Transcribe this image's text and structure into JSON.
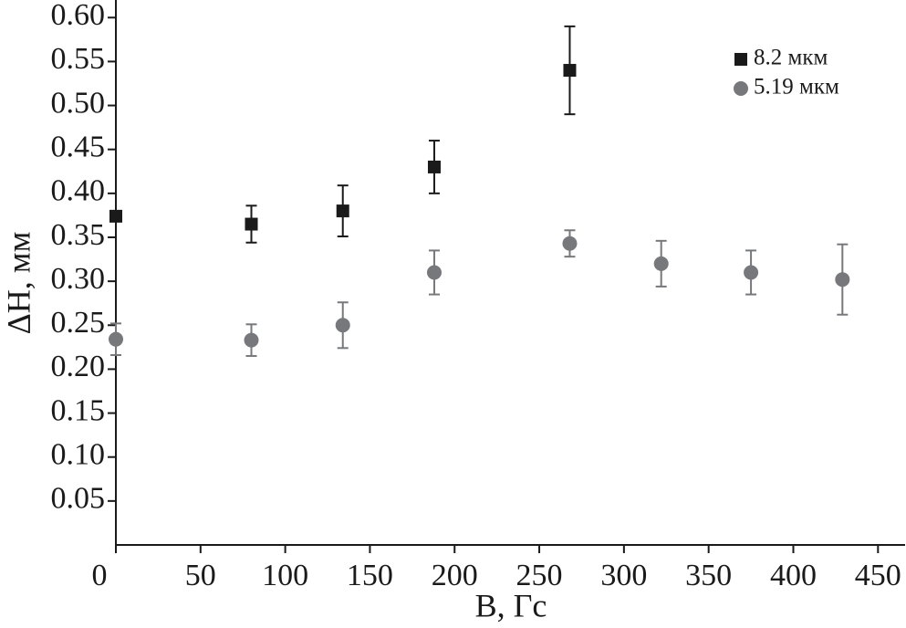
{
  "chart_data": {
    "type": "scatter",
    "x_label": "B, Гс",
    "y_label": "ΔH, мм",
    "xlim": [
      0,
      466
    ],
    "ylim": [
      0,
      0.62
    ],
    "xticks": [
      0,
      50,
      100,
      150,
      200,
      250,
      300,
      350,
      400,
      450
    ],
    "yticks": [
      0.05,
      {
        "value": 0.1,
        "label": "0.10"
      },
      0.15,
      {
        "value": 0.2,
        "label": "0.20"
      },
      0.25,
      {
        "value": 0.3,
        "label": "0.30"
      },
      0.35,
      {
        "value": 0.4,
        "label": "0.40"
      },
      0.45,
      {
        "value": 0.5,
        "label": "0.50"
      },
      0.55,
      {
        "value": 0.6,
        "label": "0.60"
      }
    ],
    "grid": false,
    "legend": "upper right",
    "series": [
      {
        "name": "8.2 мкм",
        "color": "#1a1a1a",
        "marker": "square",
        "x": [
          0,
          80,
          134,
          188,
          268
        ],
        "values": [
          0.374,
          0.365,
          0.38,
          0.43,
          0.54
        ],
        "errors": [
          null,
          0.021,
          0.029,
          0.03,
          0.05
        ]
      },
      {
        "name": "5.19 мкм",
        "color": "#77787b",
        "marker": "circle",
        "x": [
          0,
          80,
          134,
          188,
          268,
          322,
          375,
          429
        ],
        "values": [
          0.234,
          0.233,
          0.25,
          0.31,
          0.343,
          0.32,
          0.31,
          0.302
        ],
        "errors": [
          0.018,
          0.018,
          0.026,
          0.025,
          0.015,
          0.026,
          0.025,
          0.04
        ]
      }
    ]
  }
}
